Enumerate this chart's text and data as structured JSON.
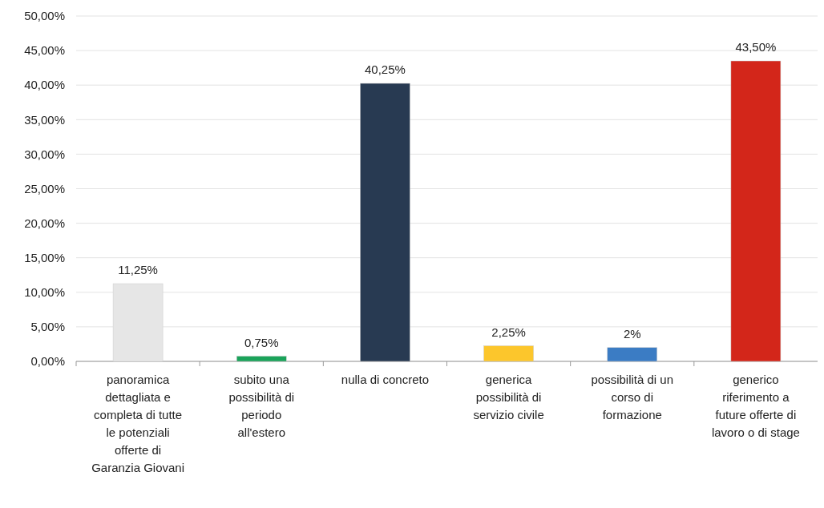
{
  "chart_data": {
    "type": "bar",
    "categories": [
      "panoramica dettagliata e completa di tutte le potenziali offerte di Garanzia Giovani",
      "subito una possibilità di periodo all'estero",
      "nulla di concreto",
      "generica possibilità di servizio civile",
      "possibilità di un corso di formazione",
      "generico riferimento a future offerte di lavoro o di stage"
    ],
    "values": [
      11.25,
      0.75,
      40.25,
      2.25,
      2,
      43.5
    ],
    "colors": [
      "#e6e6e6",
      "#1aa35a",
      "#283a52",
      "#fcc62c",
      "#3b7cc4",
      "#d3261a"
    ],
    "value_labels": [
      "11,25%",
      "0,75%",
      "40,25%",
      "2,25%",
      "2%",
      "43,50%"
    ],
    "ylim": [
      0,
      50
    ],
    "yticks": [
      {
        "value": 0,
        "label": "0,00%"
      },
      {
        "value": 5,
        "label": "5,00%"
      },
      {
        "value": 10,
        "label": "10,00%"
      },
      {
        "value": 15,
        "label": "15,00%"
      },
      {
        "value": 20,
        "label": "20,00%"
      },
      {
        "value": 25,
        "label": "25,00%"
      },
      {
        "value": 30,
        "label": "30,00%"
      },
      {
        "value": 35,
        "label": "35,00%"
      },
      {
        "value": 40,
        "label": "40,00%"
      },
      {
        "value": 45,
        "label": "45,00%"
      },
      {
        "value": 50,
        "label": "50,00%"
      }
    ],
    "grid": "y"
  }
}
